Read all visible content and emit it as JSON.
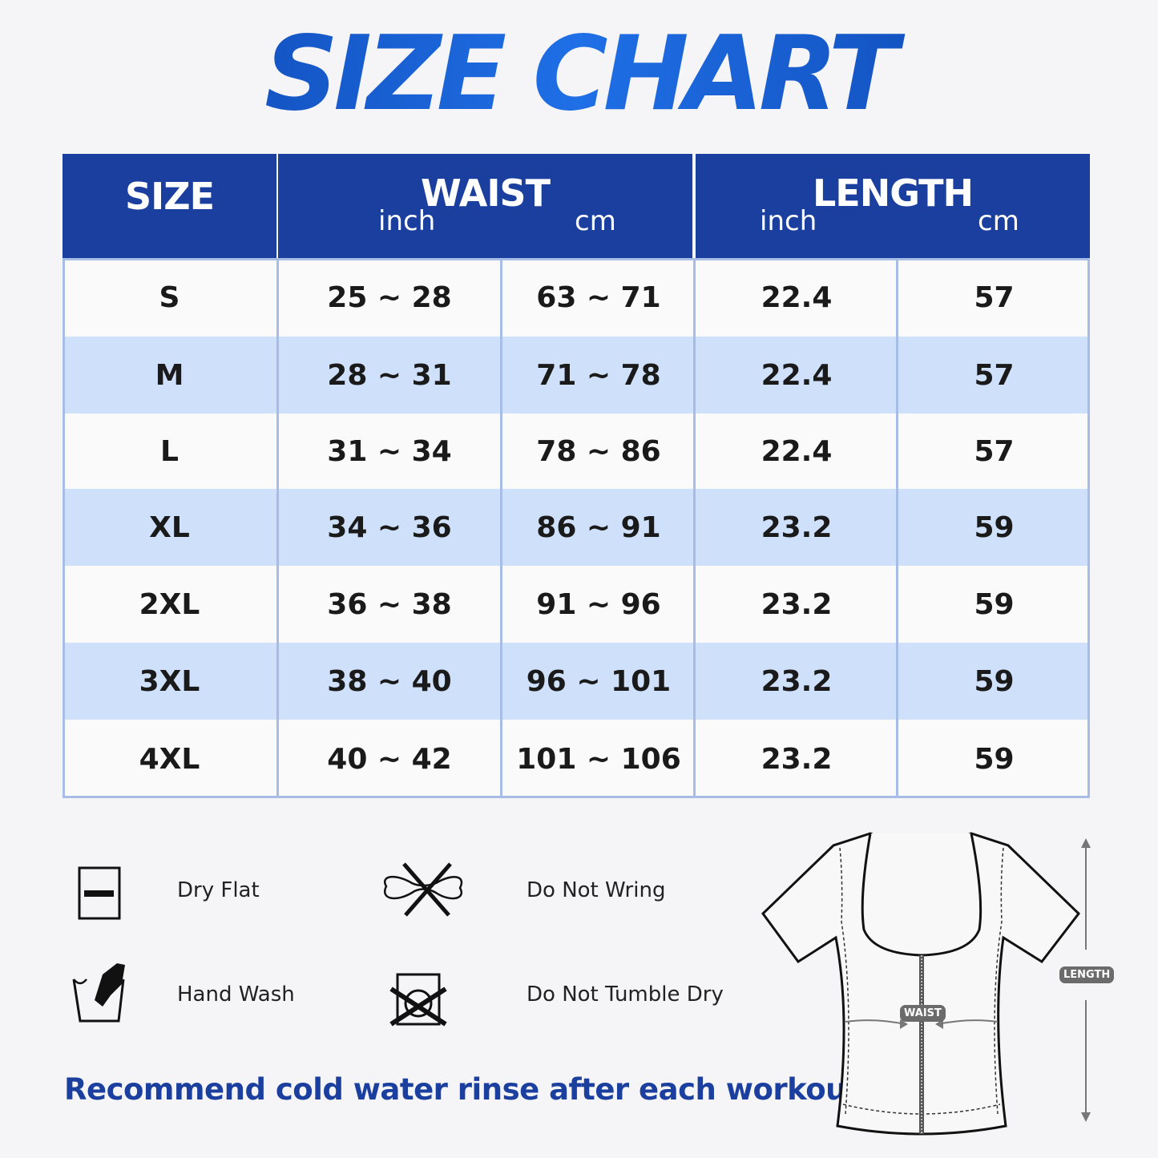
{
  "title": "SIZE CHART",
  "table": {
    "headers": {
      "size": "SIZE",
      "waist": "WAIST",
      "length": "LENGTH",
      "inch": "inch",
      "cm": "cm"
    },
    "rows": [
      {
        "size": "S",
        "waist_inch": "25 ~ 28",
        "waist_cm": "63 ~ 71",
        "length_inch": "22.4",
        "length_cm": "57"
      },
      {
        "size": "M",
        "waist_inch": "28 ~ 31",
        "waist_cm": "71 ~ 78",
        "length_inch": "22.4",
        "length_cm": "57"
      },
      {
        "size": "L",
        "waist_inch": "31 ~ 34",
        "waist_cm": "78 ~ 86",
        "length_inch": "22.4",
        "length_cm": "57"
      },
      {
        "size": "XL",
        "waist_inch": "34 ~ 36",
        "waist_cm": "86 ~ 91",
        "length_inch": "23.2",
        "length_cm": "59"
      },
      {
        "size": "2XL",
        "waist_inch": "36 ~ 38",
        "waist_cm": "91 ~ 96",
        "length_inch": "23.2",
        "length_cm": "59"
      },
      {
        "size": "3XL",
        "waist_inch": "38 ~ 40",
        "waist_cm": "96 ~ 101",
        "length_inch": "23.2",
        "length_cm": "59"
      },
      {
        "size": "4XL",
        "waist_inch": "40 ~ 42",
        "waist_cm": "101 ~ 106",
        "length_inch": "23.2",
        "length_cm": "59"
      }
    ]
  },
  "care": [
    {
      "label": "Dry Flat",
      "icon": "dry-flat-icon"
    },
    {
      "label": "Do Not Wring",
      "icon": "do-not-wring-icon"
    },
    {
      "label": "Hand Wash",
      "icon": "hand-wash-icon"
    },
    {
      "label": "Do Not Tumble Dry",
      "icon": "do-not-tumble-dry-icon"
    }
  ],
  "note": "Recommend cold water rinse after each workout.",
  "diagram": {
    "waist_label": "WAIST",
    "length_label": "LENGTH"
  },
  "colors": {
    "header": "#1a3f9f",
    "alt_row": "#cfe0fb",
    "border": "#a8bde6",
    "title": "#0d4fc8"
  }
}
